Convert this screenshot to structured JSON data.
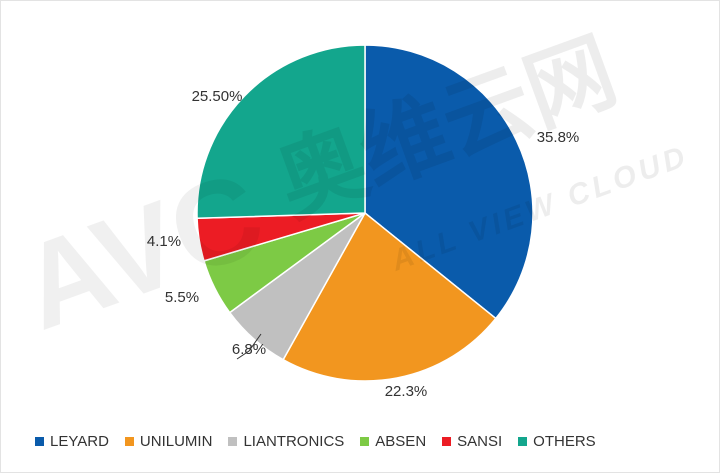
{
  "chart_data": {
    "type": "pie",
    "categories": [
      "LEYARD",
      "UNILUMIN",
      "LIANTRONICS",
      "ABSEN",
      "SANSI",
      "OTHERS"
    ],
    "values": [
      35.8,
      22.3,
      6.8,
      5.5,
      4.1,
      25.5
    ],
    "value_labels": [
      "35.8%",
      "22.3%",
      "6.8%",
      "5.5%",
      "4.1%",
      "25.50%"
    ],
    "colors": [
      "#0a5bab",
      "#f2961f",
      "#c0c0c0",
      "#7dca45",
      "#ec1c24",
      "#13a68d"
    ],
    "legend_position": "bottom",
    "start_angle": "12 o'clock",
    "direction": "clockwise"
  },
  "watermark": {
    "brand": "AVC",
    "chinese": "奥维云网",
    "english": "ALL VIEW CLOUD"
  }
}
